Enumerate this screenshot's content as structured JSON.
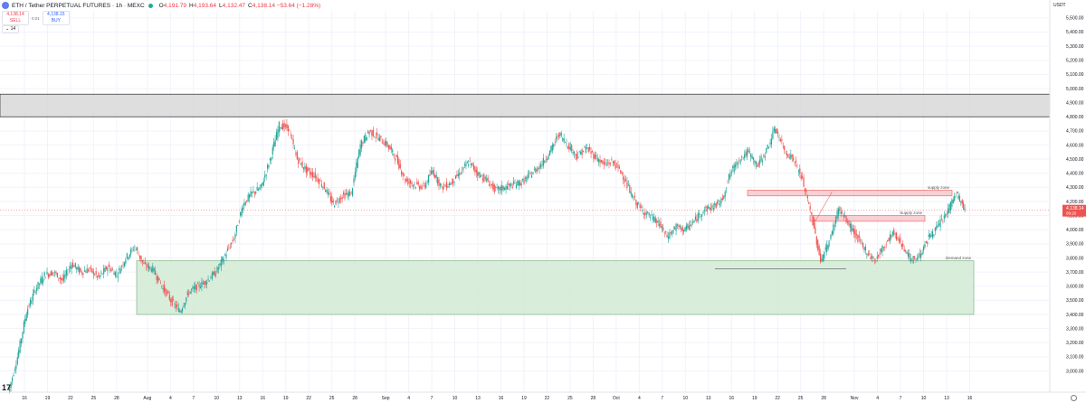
{
  "header": {
    "title": "ETH / Tether PERPETUAL FUTURES · 1h · MEXC",
    "o_key": "O",
    "o_val": "4,191.79",
    "h_key": "H",
    "h_val": "4,193.64",
    "l_key": "L",
    "l_val": "4,132.47",
    "c_key": "C",
    "c_val": "4,138.14 −53.64 (−1.28%)"
  },
  "trade": {
    "sell_price": "4,138.14",
    "sell_label": "SELL",
    "spread": "0.01",
    "buy_price": "4,138.15",
    "buy_label": "BUY"
  },
  "indicator": {
    "label": "14"
  },
  "currency": "USDT",
  "colors": {
    "up": "#26a69a",
    "down": "#ef5350",
    "supply_fill": "#f8c8cc",
    "supply_border": "#ef5350",
    "demand_fill": "#d3ebd5",
    "demand_border": "#6aa86e",
    "resistance_fill": "#d9d9d9"
  },
  "chart_data": {
    "type": "line",
    "ylim": [
      2850,
      5550
    ],
    "xlim": [
      0,
      409
    ],
    "x_unit": "hours since 14 Jul 00:00",
    "y_ticks": [
      "5,500.00",
      "5,400.00",
      "5,300.00",
      "5,200.00",
      "5,100.00",
      "5,000.00",
      "4,900.00",
      "4,800.00",
      "4,700.00",
      "4,600.00",
      "4,500.00",
      "4,400.00",
      "4,300.00",
      "4,200.00",
      "4,100.00",
      "4,000.00",
      "3,900.00",
      "3,800.00",
      "3,700.00",
      "3,600.00",
      "3,500.00",
      "3,400.00",
      "3,300.00",
      "3,200.00",
      "3,100.00",
      "3,000.00"
    ],
    "x_ticks": [
      {
        "label": "16",
        "x": 2
      },
      {
        "label": "19",
        "x": 5
      },
      {
        "label": "22",
        "x": 8
      },
      {
        "label": "25",
        "x": 11
      },
      {
        "label": "28",
        "x": 14
      },
      {
        "label": "Aug",
        "x": 18
      },
      {
        "label": "4",
        "x": 21
      },
      {
        "label": "7",
        "x": 24
      },
      {
        "label": "10",
        "x": 27
      },
      {
        "label": "13",
        "x": 30
      },
      {
        "label": "16",
        "x": 33
      },
      {
        "label": "19",
        "x": 36
      },
      {
        "label": "22",
        "x": 39
      },
      {
        "label": "25",
        "x": 42
      },
      {
        "label": "28",
        "x": 45
      },
      {
        "label": "Sep",
        "x": 49
      },
      {
        "label": "4",
        "x": 52
      },
      {
        "label": "7",
        "x": 55
      },
      {
        "label": "10",
        "x": 58
      },
      {
        "label": "13",
        "x": 61
      },
      {
        "label": "16",
        "x": 64
      },
      {
        "label": "19",
        "x": 67
      },
      {
        "label": "22",
        "x": 70
      },
      {
        "label": "25",
        "x": 73
      },
      {
        "label": "28",
        "x": 76
      },
      {
        "label": "Oct",
        "x": 79
      },
      {
        "label": "4",
        "x": 82
      },
      {
        "label": "7",
        "x": 85
      },
      {
        "label": "10",
        "x": 88
      },
      {
        "label": "13",
        "x": 91
      },
      {
        "label": "16",
        "x": 94
      },
      {
        "label": "19",
        "x": 97
      },
      {
        "label": "22",
        "x": 100
      },
      {
        "label": "25",
        "x": 103
      },
      {
        "label": "28",
        "x": 106
      },
      {
        "label": "Nov",
        "x": 110
      },
      {
        "label": "4",
        "x": 113
      },
      {
        "label": "7",
        "x": 116
      },
      {
        "label": "10",
        "x": 119
      },
      {
        "label": "13",
        "x": 122
      },
      {
        "label": "16",
        "x": 125
      }
    ],
    "last_price": {
      "value": 4138.14,
      "label": "4,138.14",
      "sublabel": "09:20"
    },
    "price_path": [
      [
        0,
        2850
      ],
      [
        1,
        3100
      ],
      [
        2,
        3420
      ],
      [
        3,
        3580
      ],
      [
        4,
        3680
      ],
      [
        5,
        3700
      ],
      [
        6,
        3640
      ],
      [
        7,
        3760
      ],
      [
        8,
        3700
      ],
      [
        9,
        3720
      ],
      [
        10,
        3660
      ],
      [
        11,
        3740
      ],
      [
        12,
        3680
      ],
      [
        13,
        3800
      ],
      [
        14,
        3880
      ],
      [
        15,
        3750
      ],
      [
        16,
        3720
      ],
      [
        17,
        3600
      ],
      [
        18,
        3500
      ],
      [
        19,
        3420
      ],
      [
        20,
        3560
      ],
      [
        21,
        3600
      ],
      [
        22,
        3640
      ],
      [
        23,
        3700
      ],
      [
        24,
        3820
      ],
      [
        25,
        3940
      ],
      [
        26,
        4180
      ],
      [
        27,
        4260
      ],
      [
        28,
        4300
      ],
      [
        29,
        4500
      ],
      [
        30,
        4740
      ],
      [
        31,
        4720
      ],
      [
        32,
        4500
      ],
      [
        33,
        4420
      ],
      [
        34,
        4380
      ],
      [
        35,
        4300
      ],
      [
        36,
        4180
      ],
      [
        37,
        4240
      ],
      [
        38,
        4260
      ],
      [
        39,
        4600
      ],
      [
        40,
        4700
      ],
      [
        41,
        4650
      ],
      [
        42,
        4600
      ],
      [
        43,
        4500
      ],
      [
        44,
        4350
      ],
      [
        45,
        4320
      ],
      [
        46,
        4300
      ],
      [
        47,
        4420
      ],
      [
        48,
        4300
      ],
      [
        49,
        4330
      ],
      [
        50,
        4400
      ],
      [
        51,
        4480
      ],
      [
        52,
        4400
      ],
      [
        53,
        4350
      ],
      [
        54,
        4280
      ],
      [
        55,
        4300
      ],
      [
        56,
        4320
      ],
      [
        57,
        4340
      ],
      [
        58,
        4400
      ],
      [
        59,
        4460
      ],
      [
        60,
        4550
      ],
      [
        61,
        4680
      ],
      [
        62,
        4600
      ],
      [
        63,
        4520
      ],
      [
        64,
        4580
      ],
      [
        65,
        4520
      ],
      [
        66,
        4460
      ],
      [
        67,
        4480
      ],
      [
        68,
        4400
      ],
      [
        69,
        4250
      ],
      [
        70,
        4150
      ],
      [
        71,
        4100
      ],
      [
        72,
        4050
      ],
      [
        73,
        3950
      ],
      [
        74,
        4020
      ],
      [
        75,
        4000
      ],
      [
        76,
        4060
      ],
      [
        77,
        4140
      ],
      [
        78,
        4160
      ],
      [
        79,
        4200
      ],
      [
        80,
        4400
      ],
      [
        81,
        4500
      ],
      [
        82,
        4550
      ],
      [
        83,
        4450
      ],
      [
        84,
        4560
      ],
      [
        85,
        4720
      ],
      [
        86,
        4560
      ],
      [
        87,
        4500
      ],
      [
        88,
        4350
      ],
      [
        89,
        4100
      ],
      [
        90,
        3780
      ],
      [
        91,
        3920
      ],
      [
        92,
        4150
      ],
      [
        93,
        4050
      ],
      [
        94,
        3950
      ],
      [
        95,
        3850
      ],
      [
        96,
        3780
      ],
      [
        97,
        3880
      ],
      [
        98,
        3980
      ],
      [
        99,
        3900
      ],
      [
        100,
        3780
      ],
      [
        101,
        3820
      ],
      [
        102,
        3950
      ],
      [
        103,
        4020
      ],
      [
        104,
        4120
      ],
      [
        105,
        4260
      ],
      [
        106,
        4138
      ]
    ],
    "zones": [
      {
        "label": "",
        "y1": 4800,
        "y2": 4960,
        "kind": "resistance"
      },
      {
        "label": "supply zone",
        "y1": 4240,
        "y2": 4280,
        "kind": "supply"
      },
      {
        "label": "Supply zone",
        "y1": 4060,
        "y2": 4100,
        "kind": "supply"
      },
      {
        "label": "Demand zone",
        "y1": 3400,
        "y2": 3780,
        "kind": "demand"
      }
    ]
  }
}
